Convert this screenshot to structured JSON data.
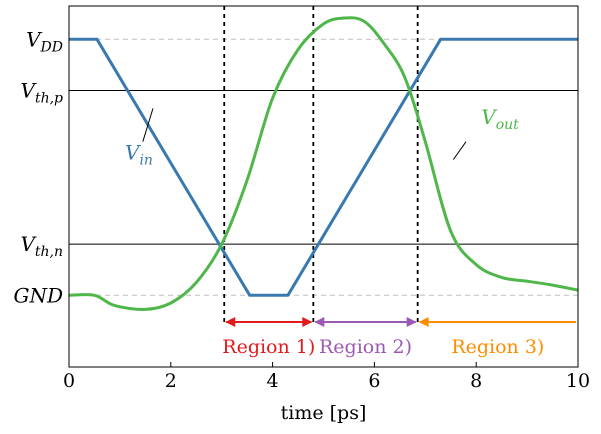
{
  "chart_data": {
    "type": "line",
    "xlabel": "time [ps]",
    "xlim": [
      0,
      10
    ],
    "ylim": [
      -0.28,
      1.13
    ],
    "x_ticks": [
      "0",
      "2",
      "4",
      "6",
      "8",
      "10"
    ],
    "y_ticks": [
      {
        "label": "V",
        "sub": "DD",
        "value": 1.0,
        "line": "dashed"
      },
      {
        "label": "V",
        "sub": "th,p",
        "value": 0.8,
        "line": "solid"
      },
      {
        "label": "V",
        "sub": "th,n",
        "value": 0.2,
        "line": "solid"
      },
      {
        "label": "GND",
        "sub": "",
        "value": 0.0,
        "line": "dashed"
      }
    ],
    "series": [
      {
        "name": "V",
        "sub": "in",
        "color": "#3a78b0",
        "x": [
          0,
          0.55,
          3.55,
          4.3,
          7.3,
          10
        ],
        "y": [
          1.0,
          1.0,
          0.0,
          0.0,
          1.0,
          1.0
        ]
      },
      {
        "name": "V",
        "sub": "out",
        "color": "#4fb74a",
        "x": [
          0,
          0.5,
          0.9,
          1.5,
          2.0,
          2.5,
          3.0,
          3.5,
          4.0,
          4.5,
          5.0,
          5.4,
          5.8,
          6.2,
          6.6,
          7.0,
          7.5,
          8.0,
          8.5,
          9.0,
          9.5,
          10
        ],
        "y": [
          0.0,
          0.0,
          -0.04,
          -0.055,
          -0.03,
          0.05,
          0.2,
          0.45,
          0.77,
          0.96,
          1.06,
          1.083,
          1.07,
          0.98,
          0.85,
          0.6,
          0.25,
          0.12,
          0.07,
          0.055,
          0.04,
          0.02
        ]
      }
    ],
    "series_labels": [
      {
        "series": 0,
        "text": "V",
        "sub": "in",
        "x": 1.1,
        "y": 0.53,
        "leader": [
          [
            1.45,
            0.6
          ],
          [
            1.65,
            0.73
          ]
        ]
      },
      {
        "series": 1,
        "text": "V",
        "sub": "out",
        "x": 8.1,
        "y": 0.67,
        "leader": [
          [
            7.55,
            0.53
          ],
          [
            7.8,
            0.6
          ]
        ]
      }
    ],
    "vertical_markers": [
      3.05,
      4.8,
      6.85
    ],
    "regions": [
      {
        "label": "Region 1)",
        "from": 3.05,
        "to": 4.8,
        "color": "#e31a1c",
        "arrows": "both"
      },
      {
        "label": "Region 2)",
        "from": 4.8,
        "to": 6.85,
        "color": "#9b59b6",
        "arrows": "both"
      },
      {
        "label": "Region 3)",
        "from": 6.85,
        "to": 10,
        "color": "#ff8c00",
        "arrows": "left"
      }
    ]
  }
}
